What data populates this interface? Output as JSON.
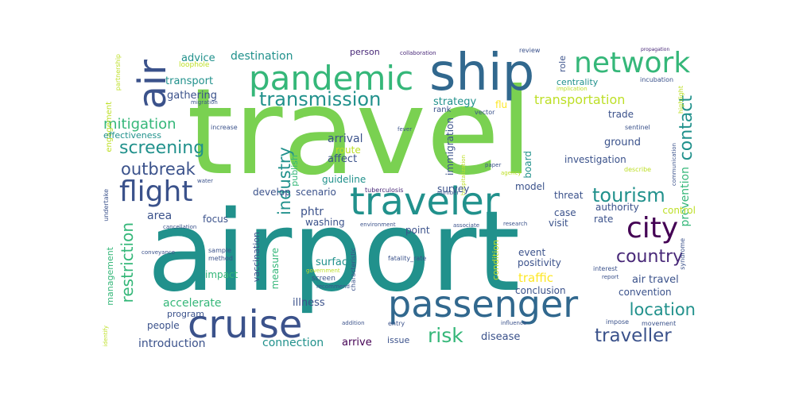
{
  "palette": {
    "background": "#ffffff",
    "lime": "#7ad151",
    "green": "#5ec962",
    "teal": "#21918c",
    "teal_green": "#35b779",
    "blue": "#31688e",
    "navy": "#3b528b",
    "purple": "#482878",
    "dark_purple": "#440154",
    "yellow": "#fde725",
    "light_yellow": "#bddf26"
  },
  "words": [
    {
      "text": "travel"
    },
    {
      "text": "airport"
    },
    {
      "text": "ship"
    },
    {
      "text": "passenger"
    },
    {
      "text": "pandemic"
    },
    {
      "text": "traveler"
    },
    {
      "text": "cruise"
    },
    {
      "text": "network"
    },
    {
      "text": "flight"
    },
    {
      "text": "air"
    },
    {
      "text": "transmission"
    },
    {
      "text": "city"
    },
    {
      "text": "tourism"
    },
    {
      "text": "screening"
    },
    {
      "text": "industry"
    },
    {
      "text": "mitigation"
    },
    {
      "text": "outbreak"
    },
    {
      "text": "country"
    },
    {
      "text": "location"
    },
    {
      "text": "risk"
    },
    {
      "text": "traveller"
    },
    {
      "text": "restriction"
    },
    {
      "text": "contact"
    },
    {
      "text": "transportation"
    },
    {
      "text": "destination"
    },
    {
      "text": "advice"
    },
    {
      "text": "transport"
    },
    {
      "text": "gathering"
    },
    {
      "text": "loophole"
    },
    {
      "text": "person"
    },
    {
      "text": "collaboration"
    },
    {
      "text": "review"
    },
    {
      "text": "engagement"
    },
    {
      "text": "partnership"
    },
    {
      "text": "strategy"
    },
    {
      "text": "flu"
    },
    {
      "text": "centrality"
    },
    {
      "text": "role"
    },
    {
      "text": "incubation"
    },
    {
      "text": "highlight"
    },
    {
      "text": "rank"
    },
    {
      "text": "trade"
    },
    {
      "text": "sentinel"
    },
    {
      "text": "communication"
    },
    {
      "text": "effectiveness"
    },
    {
      "text": "increase"
    },
    {
      "text": "migration"
    },
    {
      "text": "vector"
    },
    {
      "text": "fever"
    },
    {
      "text": "ground"
    },
    {
      "text": "prevention"
    },
    {
      "text": "board"
    },
    {
      "text": "arrival"
    },
    {
      "text": "immigration"
    },
    {
      "text": "affect"
    },
    {
      "text": "route"
    },
    {
      "text": "publish"
    },
    {
      "text": "investigation"
    },
    {
      "text": "paper"
    },
    {
      "text": "describe"
    },
    {
      "text": "hospitalization"
    },
    {
      "text": "agency"
    },
    {
      "text": "guideline"
    },
    {
      "text": "survey"
    },
    {
      "text": "model"
    },
    {
      "text": "tuberculosis"
    },
    {
      "text": "number"
    },
    {
      "text": "water"
    },
    {
      "text": "develop"
    },
    {
      "text": "scenario"
    },
    {
      "text": "threat"
    },
    {
      "text": "authority"
    },
    {
      "text": "control"
    },
    {
      "text": "area"
    },
    {
      "text": "focus"
    },
    {
      "text": "phtr"
    },
    {
      "text": "washing"
    },
    {
      "text": "case"
    },
    {
      "text": "rate"
    },
    {
      "text": "environment"
    },
    {
      "text": "point"
    },
    {
      "text": "associate"
    },
    {
      "text": "visit"
    },
    {
      "text": "research"
    },
    {
      "text": "management"
    },
    {
      "text": "undertake"
    },
    {
      "text": "cancellation"
    },
    {
      "text": "conveyance"
    },
    {
      "text": "sample"
    },
    {
      "text": "method"
    },
    {
      "text": "vaccination"
    },
    {
      "text": "measure"
    },
    {
      "text": "event"
    },
    {
      "text": "positivity"
    },
    {
      "text": "syndrome"
    },
    {
      "text": "impact"
    },
    {
      "text": "surface"
    },
    {
      "text": "fatality_rate"
    },
    {
      "text": "government"
    },
    {
      "text": "characteristic"
    },
    {
      "text": "condition"
    },
    {
      "text": "traffic"
    },
    {
      "text": "interest"
    },
    {
      "text": "report"
    },
    {
      "text": "screen"
    },
    {
      "text": "recommend"
    },
    {
      "text": "conclusion"
    },
    {
      "text": "air travel"
    },
    {
      "text": "convention"
    },
    {
      "text": "accelerate"
    },
    {
      "text": "illness"
    },
    {
      "text": "program"
    },
    {
      "text": "people"
    },
    {
      "text": "introduction"
    },
    {
      "text": "connection"
    },
    {
      "text": "arrive"
    },
    {
      "text": "issue"
    },
    {
      "text": "disease"
    },
    {
      "text": "addition"
    },
    {
      "text": "entry"
    },
    {
      "text": "influence"
    },
    {
      "text": "impose"
    },
    {
      "text": "movement"
    },
    {
      "text": "identify"
    },
    {
      "text": "propagation"
    },
    {
      "text": "implication"
    }
  ]
}
